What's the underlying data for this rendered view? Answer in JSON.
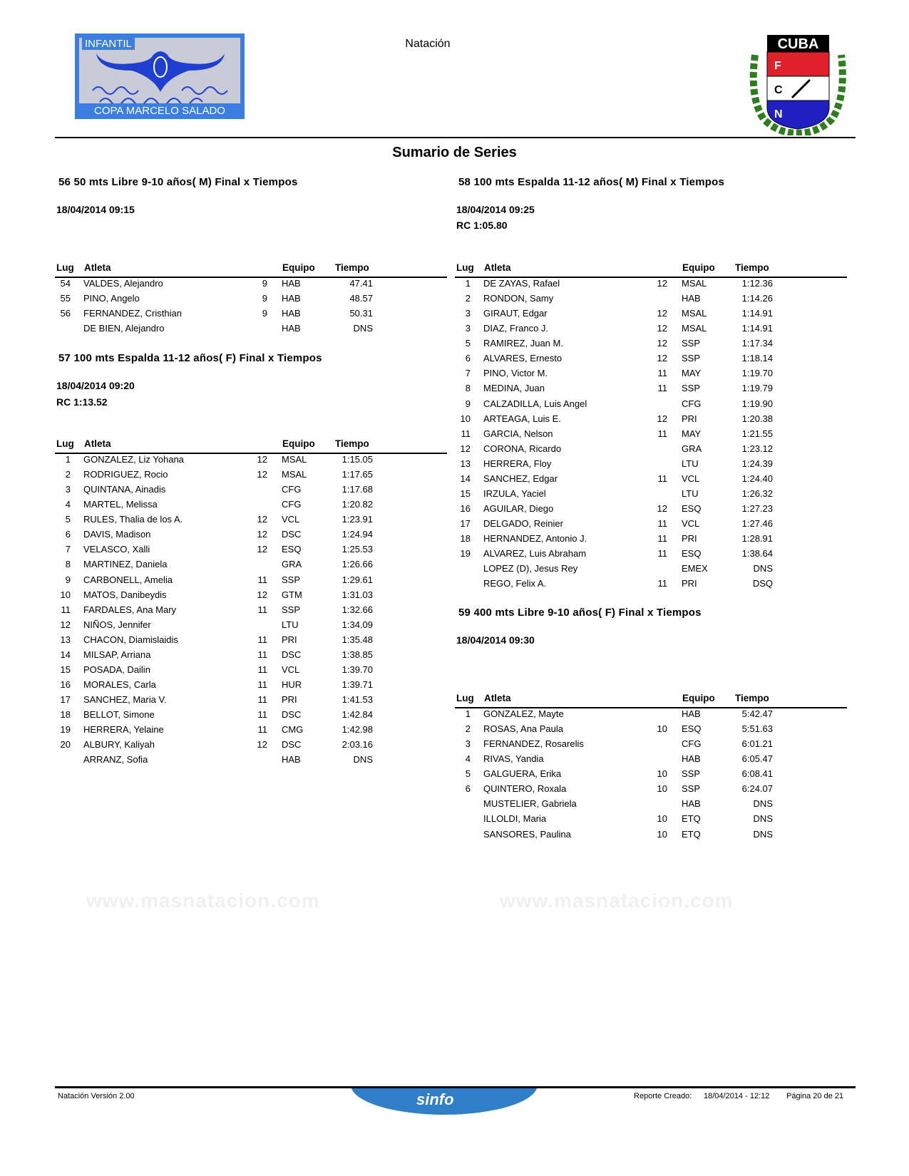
{
  "header": {
    "title": "Natación",
    "logo_left": {
      "top_text": "INFANTIL",
      "bottom_text": "COPA MARCELO SALADO"
    },
    "logo_right": {
      "text": "CUBA",
      "letters": [
        "F",
        "C",
        "N"
      ]
    },
    "section_title": "Sumario de Series"
  },
  "columns": {
    "lug": "Lug",
    "atleta": "Atleta",
    "equipo": "Equipo",
    "tiempo": "Tiempo"
  },
  "events": [
    {
      "title": "56 50 mts Libre 9-10 años( M) Final x Tiempos",
      "datetime": "18/04/2014 09:15",
      "rc": "",
      "rows": [
        [
          "54",
          "VALDES, Alejandro",
          "9",
          "HAB",
          "47.41"
        ],
        [
          "55",
          "PINO, Angelo",
          "9",
          "HAB",
          "48.57"
        ],
        [
          "56",
          "FERNANDEZ, Cristhian",
          "9",
          "HAB",
          "50.31"
        ],
        [
          "",
          "DE BIEN, Alejandro",
          "",
          "HAB",
          "DNS"
        ]
      ]
    },
    {
      "title": "57 100 mts Espalda 11-12 años( F) Final x Tiempos",
      "datetime": "18/04/2014 09:20",
      "rc": "RC  1:13.52",
      "rows": [
        [
          "1",
          "GONZALEZ, Liz Yohana",
          "12",
          "MSAL",
          "1:15.05"
        ],
        [
          "2",
          "RODRIGUEZ, Rocio",
          "12",
          "MSAL",
          "1:17.65"
        ],
        [
          "3",
          "QUINTANA, Ainadis",
          "",
          "CFG",
          "1:17.68"
        ],
        [
          "4",
          "MARTEL, Melissa",
          "",
          "CFG",
          "1:20.82"
        ],
        [
          "5",
          "RULES, Thalia de los A.",
          "12",
          "VCL",
          "1:23.91"
        ],
        [
          "6",
          "DAVIS, Madison",
          "12",
          "DSC",
          "1:24.94"
        ],
        [
          "7",
          "VELASCO, Xalli",
          "12",
          "ESQ",
          "1:25.53"
        ],
        [
          "8",
          "MARTINEZ, Daniela",
          "",
          "GRA",
          "1:26.66"
        ],
        [
          "9",
          "CARBONELL, Amelia",
          "11",
          "SSP",
          "1:29.61"
        ],
        [
          "10",
          "MATOS, Danibeydis",
          "12",
          "GTM",
          "1:31.03"
        ],
        [
          "11",
          "FARDALES, Ana Mary",
          "11",
          "SSP",
          "1:32.66"
        ],
        [
          "12",
          "NIÑOS, Jennifer",
          "",
          "LTU",
          "1:34.09"
        ],
        [
          "13",
          "CHACON, Diamislaidis",
          "11",
          "PRI",
          "1:35.48"
        ],
        [
          "14",
          "MILSAP, Arriana",
          "11",
          "DSC",
          "1:38.85"
        ],
        [
          "15",
          "POSADA, Dailin",
          "11",
          "VCL",
          "1:39.70"
        ],
        [
          "16",
          "MORALES, Carla",
          "11",
          "HUR",
          "1:39.71"
        ],
        [
          "17",
          "SANCHEZ, Maria V.",
          "11",
          "PRI",
          "1:41.53"
        ],
        [
          "18",
          "BELLOT, Simone",
          "11",
          "DSC",
          "1:42.84"
        ],
        [
          "19",
          "HERRERA, Yelaine",
          "11",
          "CMG",
          "1:42.98"
        ],
        [
          "20",
          "ALBURY, Kaliyah",
          "12",
          "DSC",
          "2:03.16"
        ],
        [
          "",
          "ARRANZ, Sofia",
          "",
          "HAB",
          "DNS"
        ]
      ]
    },
    {
      "title": "58 100 mts Espalda 11-12 años( M) Final x Tiempos",
      "datetime": "18/04/2014 09:25",
      "rc": "RC  1:05.80",
      "rows": [
        [
          "1",
          "DE ZAYAS, Rafael",
          "12",
          "MSAL",
          "1:12.36"
        ],
        [
          "2",
          "RONDON, Samy",
          "",
          "HAB",
          "1:14.26"
        ],
        [
          "3",
          "GIRAUT, Edgar",
          "12",
          "MSAL",
          "1:14.91"
        ],
        [
          "3",
          "DIAZ, Franco J.",
          "12",
          "MSAL",
          "1:14.91"
        ],
        [
          "5",
          "RAMIREZ, Juan M.",
          "12",
          "SSP",
          "1:17.34"
        ],
        [
          "6",
          "ALVARES, Ernesto",
          "12",
          "SSP",
          "1:18.14"
        ],
        [
          "7",
          "PINO, Victor M.",
          "11",
          "MAY",
          "1:19.70"
        ],
        [
          "8",
          "MEDINA, Juan",
          "11",
          "SSP",
          "1:19.79"
        ],
        [
          "9",
          "CALZADILLA, Luis Angel",
          "",
          "CFG",
          "1:19.90"
        ],
        [
          "10",
          "ARTEAGA, Luis E.",
          "12",
          "PRI",
          "1:20.38"
        ],
        [
          "11",
          "GARCIA, Nelson",
          "11",
          "MAY",
          "1:21.55"
        ],
        [
          "12",
          "CORONA, Ricardo",
          "",
          "GRA",
          "1:23.12"
        ],
        [
          "13",
          "HERRERA, Floy",
          "",
          "LTU",
          "1:24.39"
        ],
        [
          "14",
          "SANCHEZ, Edgar",
          "11",
          "VCL",
          "1:24.40"
        ],
        [
          "15",
          "IRZULA, Yaciel",
          "",
          "LTU",
          "1:26.32"
        ],
        [
          "16",
          "AGUILAR, Diego",
          "12",
          "ESQ",
          "1:27.23"
        ],
        [
          "17",
          "DELGADO, Reinier",
          "11",
          "VCL",
          "1:27.46"
        ],
        [
          "18",
          "HERNANDEZ, Antonio J.",
          "11",
          "PRI",
          "1:28.91"
        ],
        [
          "19",
          "ALVAREZ, Luis Abraham",
          "11",
          "ESQ",
          "1:38.64"
        ],
        [
          "",
          "LOPEZ (D), Jesus Rey",
          "",
          "EMEX",
          "DNS"
        ],
        [
          "",
          "REGO, Felix A.",
          "11",
          "PRI",
          "DSQ"
        ]
      ]
    },
    {
      "title": "59 400 mts Libre 9-10 años( F) Final x Tiempos",
      "datetime": "18/04/2014 09:30",
      "rc": "",
      "rows": [
        [
          "1",
          "GONZALEZ, Mayte",
          "",
          "HAB",
          "5:42.47"
        ],
        [
          "2",
          "ROSAS, Ana Paula",
          "10",
          "ESQ",
          "5:51.63"
        ],
        [
          "3",
          "FERNANDEZ, Rosarelis",
          "",
          "CFG",
          "6:01.21"
        ],
        [
          "4",
          "RIVAS, Yandia",
          "",
          "HAB",
          "6:05.47"
        ],
        [
          "5",
          "GALGUERA, Erika",
          "10",
          "SSP",
          "6:08.41"
        ],
        [
          "6",
          "QUINTERO, Roxala",
          "10",
          "SSP",
          "6:24.07"
        ],
        [
          "",
          "MUSTELIER, Gabriela",
          "",
          "HAB",
          "DNS"
        ],
        [
          "",
          "ILLOLDI, Maria",
          "10",
          "ETQ",
          "DNS"
        ],
        [
          "",
          "SANSORES, Paulina",
          "10",
          "ETQ",
          "DNS"
        ]
      ]
    }
  ],
  "watermark": "www.masnatacion.com",
  "footer": {
    "version": "Natación Versión 2.00",
    "logo_text": "sinfo",
    "report_label": "Reporte Creado:",
    "report_date": "18/04/2014 - 12:12",
    "page": "Página 20 de 21"
  },
  "colors": {
    "logo_blue": "#3a7fe0",
    "sinfo_blue": "#2f7fc8",
    "crest_red": "#e0202a",
    "crest_blue": "#2020c0",
    "crest_green": "#2e7d1e"
  }
}
